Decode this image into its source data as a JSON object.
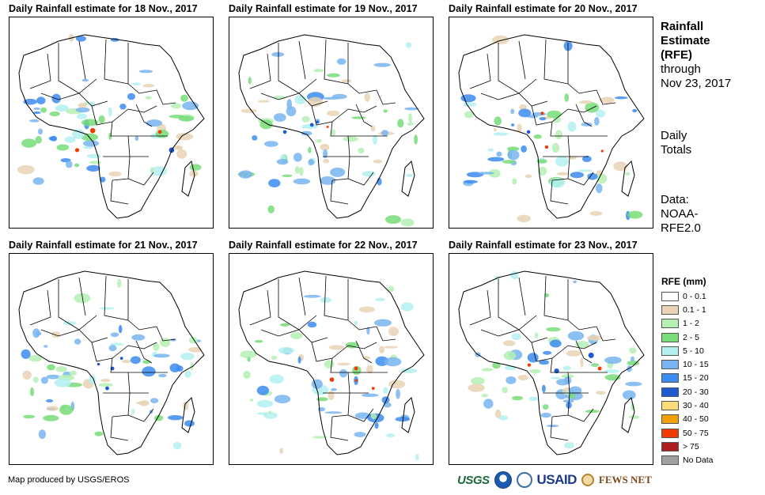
{
  "panels": [
    {
      "title": "Daily Rainfall estimate for 18 Nov., 2017",
      "date": "18 Nov., 2017"
    },
    {
      "title": "Daily Rainfall estimate for 19 Nov., 2017",
      "date": "19 Nov., 2017"
    },
    {
      "title": "Daily Rainfall estimate for 20 Nov., 2017",
      "date": "20 Nov., 2017"
    },
    {
      "title": "Daily Rainfall estimate for 21 Nov., 2017",
      "date": "21 Nov., 2017"
    },
    {
      "title": "Daily Rainfall estimate for 22 Nov., 2017",
      "date": "22 Nov., 2017"
    },
    {
      "title": "Daily Rainfall estimate for 23 Nov., 2017",
      "date": "23 Nov., 2017"
    }
  ],
  "side": {
    "title_line1": "Rainfall",
    "title_line2": "Estimate",
    "title_line3": "(RFE)",
    "through_line1": "through",
    "through_line2": "Nov 23, 2017",
    "totals_line1": "Daily",
    "totals_line2": "Totals",
    "data_line1": "Data:",
    "data_line2": "NOAA-",
    "data_line3": "RFE2.0"
  },
  "legend": {
    "title": "RFE (mm)",
    "items": [
      {
        "label": "0 - 0.1",
        "color": "#ffffff"
      },
      {
        "label": "0.1 - 1",
        "color": "#e8d4b4"
      },
      {
        "label": "1 - 2",
        "color": "#b4f0b4"
      },
      {
        "label": "2 - 5",
        "color": "#78dc78"
      },
      {
        "label": "5 - 10",
        "color": "#b4f0f0"
      },
      {
        "label": "10 - 15",
        "color": "#78b4f0"
      },
      {
        "label": "15 - 20",
        "color": "#3c8cf0"
      },
      {
        "label": "20 - 30",
        "color": "#1e5ad2"
      },
      {
        "label": "30 - 40",
        "color": "#fadc78"
      },
      {
        "label": "40 - 50",
        "color": "#f0a000"
      },
      {
        "label": "50 - 75",
        "color": "#f03c00"
      },
      {
        "label": "> 75",
        "color": "#aa1e1e"
      },
      {
        "label": "No Data",
        "color": "#a0a0a0"
      }
    ]
  },
  "footer": {
    "credit": "Map produced by USGS/EROS",
    "logos": {
      "usgs": "USGS",
      "usaid": "USAID",
      "fews": "FEWS NET"
    }
  }
}
